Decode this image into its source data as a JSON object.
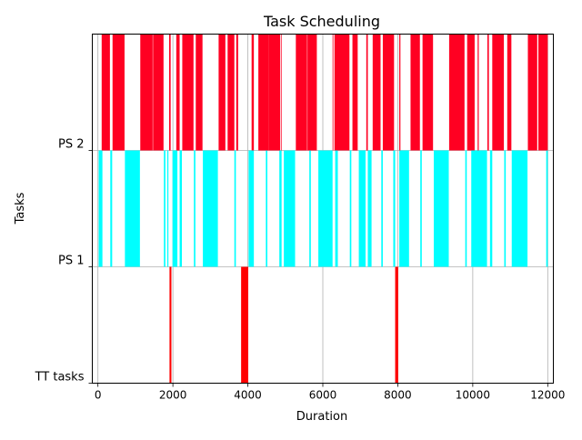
{
  "chart_data": {
    "type": "bar",
    "title": "Task Scheduling",
    "xlabel": "Duration",
    "ylabel": "Tasks",
    "xlim": [
      -150,
      12150
    ],
    "xticks": [
      0,
      2000,
      4000,
      6000,
      8000,
      10000,
      12000
    ],
    "xtick_labels": [
      "0",
      "2000",
      "4000",
      "6000",
      "8000",
      "10000",
      "12000"
    ],
    "grid": true,
    "rows": [
      {
        "label": "TT tasks"
      },
      {
        "label": "PS 1"
      },
      {
        "label": "PS 2"
      }
    ],
    "series": [
      {
        "row": 0,
        "color": "#ff0000",
        "intervals": [
          [
            1910,
            1960
          ],
          [
            3820,
            4010
          ],
          [
            7930,
            8010
          ]
        ]
      },
      {
        "row": 1,
        "color": "#00ffff",
        "intervals": [
          [
            20,
            120
          ],
          [
            330,
            380
          ],
          [
            720,
            1120
          ],
          [
            1760,
            1800
          ],
          [
            1850,
            1880
          ],
          [
            1990,
            2120
          ],
          [
            2180,
            2240
          ],
          [
            2560,
            2600
          ],
          [
            2800,
            3200
          ],
          [
            3640,
            3680
          ],
          [
            4020,
            4160
          ],
          [
            4480,
            4520
          ],
          [
            4840,
            4900
          ],
          [
            4960,
            5260
          ],
          [
            5640,
            5680
          ],
          [
            5880,
            6260
          ],
          [
            6330,
            6400
          ],
          [
            6720,
            6760
          ],
          [
            6960,
            7140
          ],
          [
            7200,
            7300
          ],
          [
            7560,
            7600
          ],
          [
            7880,
            7930
          ],
          [
            8040,
            8300
          ],
          [
            8600,
            8640
          ],
          [
            8960,
            9360
          ],
          [
            9800,
            9840
          ],
          [
            9960,
            10380
          ],
          [
            10460,
            10520
          ],
          [
            10840,
            10880
          ],
          [
            11040,
            11460
          ],
          [
            11960,
            12000
          ]
        ]
      },
      {
        "row": 2,
        "color": "#ff0022",
        "intervals": [
          [
            100,
            320
          ],
          [
            390,
            710
          ],
          [
            1130,
            1460
          ],
          [
            1470,
            1750
          ],
          [
            1900,
            1940
          ],
          [
            2090,
            2180
          ],
          [
            2250,
            2550
          ],
          [
            2610,
            2790
          ],
          [
            3220,
            3400
          ],
          [
            3460,
            3640
          ],
          [
            3690,
            3740
          ],
          [
            4100,
            4160
          ],
          [
            4280,
            4560
          ],
          [
            4560,
            4860
          ],
          [
            4880,
            4900
          ],
          [
            5280,
            5580
          ],
          [
            5590,
            5840
          ],
          [
            6260,
            6280
          ],
          [
            6310,
            6710
          ],
          [
            6790,
            6930
          ],
          [
            7160,
            7200
          ],
          [
            7330,
            7540
          ],
          [
            7600,
            7900
          ],
          [
            8040,
            8070
          ],
          [
            8340,
            8590
          ],
          [
            8660,
            8940
          ],
          [
            9370,
            9780
          ],
          [
            9850,
            10050
          ],
          [
            10130,
            10160
          ],
          [
            10390,
            10430
          ],
          [
            10520,
            10830
          ],
          [
            10920,
            11030
          ],
          [
            11470,
            11720
          ],
          [
            11750,
            12000
          ]
        ]
      }
    ]
  }
}
